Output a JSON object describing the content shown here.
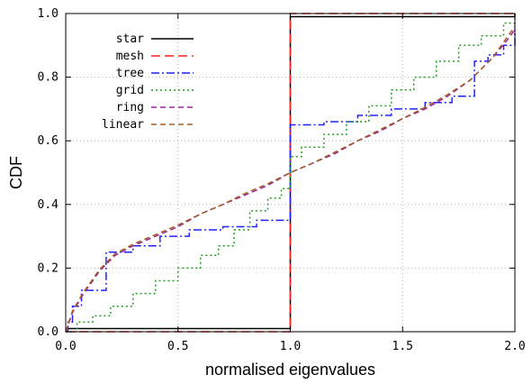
{
  "chart_data": {
    "type": "line",
    "title": "",
    "xlabel": "normalised eigenvalues",
    "ylabel": "CDF",
    "xlim": [
      0.0,
      2.0
    ],
    "ylim": [
      0.0,
      1.0
    ],
    "xticks": [
      "0.0",
      "0.5",
      "1.0",
      "1.5",
      "2.0"
    ],
    "yticks": [
      "0.0",
      "0.2",
      "0.4",
      "0.6",
      "0.8",
      "1.0"
    ],
    "grid": true,
    "legend_position": "top-left",
    "series": [
      {
        "name": "star",
        "color": "#000000",
        "dash": "solid",
        "step": true,
        "points": [
          [
            0.0,
            0.01
          ],
          [
            1.0,
            0.01
          ],
          [
            1.0,
            0.99
          ],
          [
            2.0,
            0.99
          ],
          [
            2.0,
            1.0
          ]
        ]
      },
      {
        "name": "mesh",
        "color": "#ff2020",
        "dash": "long-dash",
        "step": true,
        "points": [
          [
            0.0,
            0.0
          ],
          [
            1.0,
            0.0
          ],
          [
            1.0,
            1.0
          ],
          [
            2.0,
            1.0
          ]
        ]
      },
      {
        "name": "tree",
        "color": "#2020ff",
        "dash": "dash-dot",
        "step": true,
        "points": [
          [
            0.0,
            0.0
          ],
          [
            0.01,
            0.03
          ],
          [
            0.03,
            0.08
          ],
          [
            0.07,
            0.13
          ],
          [
            0.12,
            0.13
          ],
          [
            0.18,
            0.25
          ],
          [
            0.3,
            0.27
          ],
          [
            0.42,
            0.3
          ],
          [
            0.55,
            0.32
          ],
          [
            0.7,
            0.33
          ],
          [
            0.85,
            0.35
          ],
          [
            1.0,
            0.36
          ],
          [
            1.0,
            0.65
          ],
          [
            1.15,
            0.66
          ],
          [
            1.3,
            0.68
          ],
          [
            1.45,
            0.7
          ],
          [
            1.6,
            0.72
          ],
          [
            1.72,
            0.74
          ],
          [
            1.81,
            0.74
          ],
          [
            1.82,
            0.85
          ],
          [
            1.88,
            0.87
          ],
          [
            1.95,
            0.9
          ],
          [
            2.0,
            0.95
          ]
        ]
      },
      {
        "name": "grid",
        "color": "#20a020",
        "dash": "dotted",
        "step": true,
        "points": [
          [
            0.0,
            0.0
          ],
          [
            0.05,
            0.03
          ],
          [
            0.12,
            0.05
          ],
          [
            0.2,
            0.08
          ],
          [
            0.3,
            0.12
          ],
          [
            0.4,
            0.16
          ],
          [
            0.5,
            0.2
          ],
          [
            0.6,
            0.24
          ],
          [
            0.68,
            0.27
          ],
          [
            0.75,
            0.32
          ],
          [
            0.82,
            0.38
          ],
          [
            0.9,
            0.42
          ],
          [
            0.96,
            0.45
          ],
          [
            1.0,
            0.46
          ],
          [
            1.0,
            0.55
          ],
          [
            1.05,
            0.58
          ],
          [
            1.15,
            0.62
          ],
          [
            1.25,
            0.66
          ],
          [
            1.35,
            0.71
          ],
          [
            1.45,
            0.76
          ],
          [
            1.55,
            0.8
          ],
          [
            1.65,
            0.85
          ],
          [
            1.75,
            0.9
          ],
          [
            1.85,
            0.93
          ],
          [
            1.95,
            0.97
          ],
          [
            2.0,
            1.0
          ]
        ]
      },
      {
        "name": "ring",
        "color": "#a020a0",
        "dash": "dashed",
        "step": false,
        "points": [
          [
            0.0,
            0.0
          ],
          [
            0.03,
            0.06
          ],
          [
            0.08,
            0.12
          ],
          [
            0.15,
            0.19
          ],
          [
            0.22,
            0.24
          ],
          [
            0.3,
            0.27
          ],
          [
            0.4,
            0.3
          ],
          [
            0.5,
            0.33
          ],
          [
            0.6,
            0.37
          ],
          [
            0.7,
            0.4
          ],
          [
            0.8,
            0.43
          ],
          [
            0.9,
            0.46
          ],
          [
            1.0,
            0.5
          ],
          [
            1.1,
            0.53
          ],
          [
            1.2,
            0.56
          ],
          [
            1.3,
            0.6
          ],
          [
            1.4,
            0.63
          ],
          [
            1.5,
            0.67
          ],
          [
            1.6,
            0.7
          ],
          [
            1.7,
            0.74
          ],
          [
            1.8,
            0.79
          ],
          [
            1.9,
            0.86
          ],
          [
            1.97,
            0.92
          ],
          [
            2.0,
            0.95
          ]
        ]
      },
      {
        "name": "linear",
        "color": "#a06020",
        "dash": "dashed",
        "step": false,
        "points": [
          [
            0.0,
            0.0
          ],
          [
            0.03,
            0.065
          ],
          [
            0.08,
            0.125
          ],
          [
            0.15,
            0.195
          ],
          [
            0.22,
            0.245
          ],
          [
            0.3,
            0.275
          ],
          [
            0.4,
            0.305
          ],
          [
            0.5,
            0.335
          ],
          [
            0.6,
            0.37
          ],
          [
            0.7,
            0.4
          ],
          [
            0.8,
            0.435
          ],
          [
            0.9,
            0.465
          ],
          [
            1.0,
            0.5
          ],
          [
            1.1,
            0.53
          ],
          [
            1.2,
            0.565
          ],
          [
            1.3,
            0.6
          ],
          [
            1.4,
            0.635
          ],
          [
            1.5,
            0.67
          ],
          [
            1.6,
            0.705
          ],
          [
            1.7,
            0.745
          ],
          [
            1.8,
            0.79
          ],
          [
            1.9,
            0.86
          ],
          [
            1.97,
            0.93
          ],
          [
            2.0,
            0.96
          ]
        ]
      }
    ]
  }
}
